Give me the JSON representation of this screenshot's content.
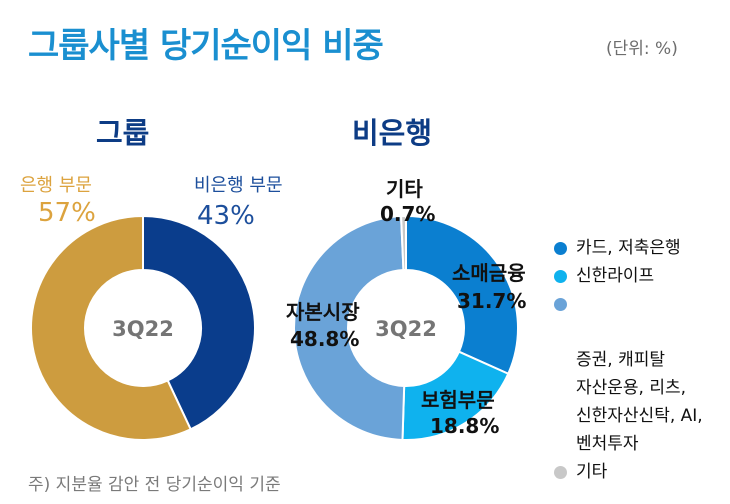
{
  "header": {
    "title": "그룹사별 당기순이익 비중",
    "unit": "(단위: %)"
  },
  "chart_data": [
    {
      "type": "pie",
      "title": "그룹",
      "center_label": "3Q22",
      "slices": [
        {
          "name": "비은행 부문",
          "value": 43,
          "value_label": "43%",
          "color": "#0a3d8c"
        },
        {
          "name": "은행 부문",
          "value": 57,
          "value_label": "57%",
          "color": "#cd9c3f"
        }
      ]
    },
    {
      "type": "pie",
      "title": "비은행",
      "center_label": "3Q22",
      "slices": [
        {
          "name": "소매금융",
          "value": 31.7,
          "value_label": "31.7%",
          "color": "#0b7fd0"
        },
        {
          "name": "보험부문",
          "value": 18.8,
          "value_label": "18.8%",
          "color": "#0fb2ee"
        },
        {
          "name": "자본시장",
          "value": 48.8,
          "value_label": "48.8%",
          "color": "#6aa3d8"
        },
        {
          "name": "기타",
          "value": 0.7,
          "value_label": "0.7%",
          "color": "#c8c8c8"
        }
      ]
    }
  ],
  "legend": [
    {
      "text": "카드, 저축은행",
      "color": "#0b7fd0"
    },
    {
      "text": "신한라이프",
      "color": "#0fb2ee"
    },
    {
      "text": "증권, 캐피탈\n자산운용, 리츠,\n신한자산신탁, AI,\n벤처투자",
      "color": "#6aa3d8"
    },
    {
      "text": "기타",
      "color": "#c8c8c8"
    }
  ],
  "footnote": "주) 지분율 감안 전 당기순이익 기준"
}
